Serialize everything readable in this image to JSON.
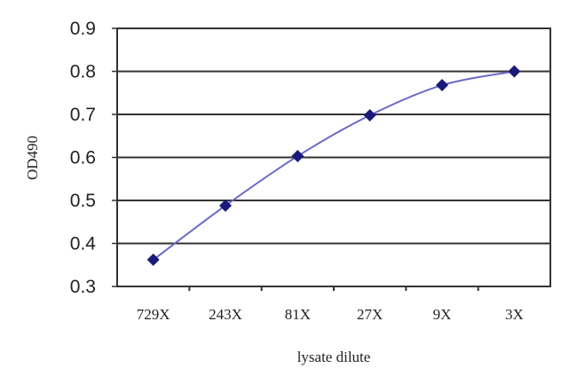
{
  "chart_data": {
    "type": "line",
    "title": "",
    "xlabel": "lysate dilute",
    "ylabel": "OD490",
    "categories": [
      "729X",
      "243X",
      "81X",
      "27X",
      "9X",
      "3X"
    ],
    "series": [
      {
        "values": [
          0.362,
          0.488,
          0.603,
          0.698,
          0.768,
          0.8
        ]
      }
    ],
    "ylim": [
      0.3,
      0.9
    ],
    "yticks": [
      "0.3",
      "0.4",
      "0.5",
      "0.6",
      "0.7",
      "0.8",
      "0.9"
    ],
    "grid": true,
    "legend": "none",
    "line_color": "#6a6ac8",
    "marker_color": "#1a1a7a",
    "marker": "diamond",
    "smooth": true
  }
}
